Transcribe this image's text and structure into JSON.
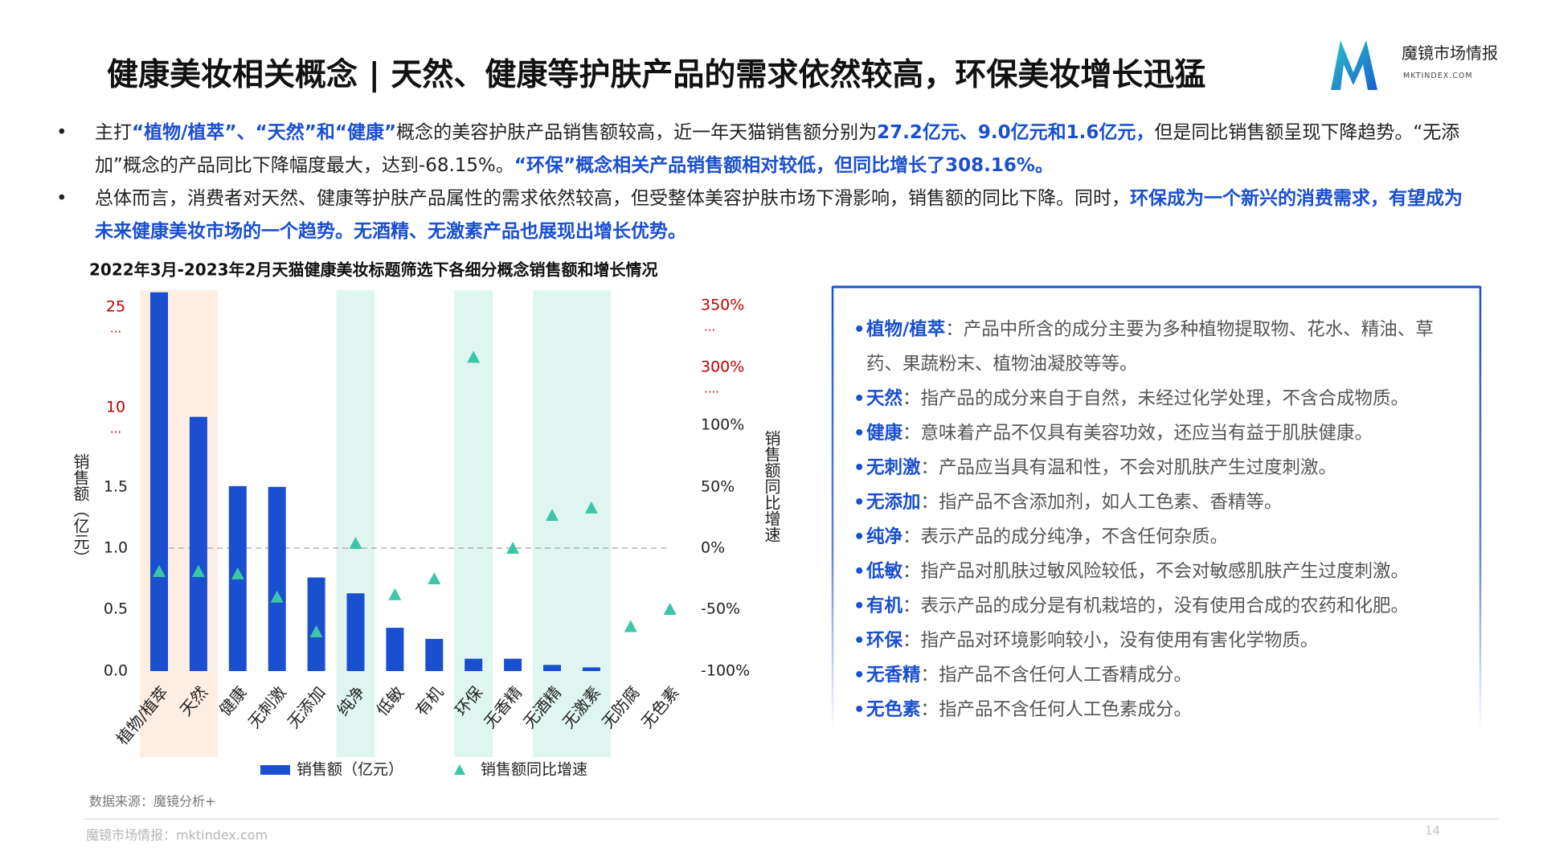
{
  "title": "健康美妆相关概念 | 天然、健康等护肤产品的需求依然较高，环保美妆增长迅猛",
  "brand": {
    "name": "魔镜市场情报",
    "site": "MKTINDEX.COM"
  },
  "bullets": [
    [
      {
        "text": "主打",
        "strong": false
      },
      {
        "text": "“植物/植萃”、“天然”和“健康”",
        "strong": true
      },
      {
        "text": "概念的美容护肤产品销售额较高，近一年天猫销售额分别为",
        "strong": false
      },
      {
        "text": "27.2亿元、9.0亿元和1.6亿元，",
        "strong": true
      },
      {
        "text": "但是同比销售额呈现下降趋势。“无添加”概念的产品同比下降幅度最大，达到-68.15%。",
        "strong": false
      },
      {
        "text": "“环保”概念相关产品销售额相对较低，但同比增长了308.16%。",
        "strong": true
      }
    ],
    [
      {
        "text": "总体而言，消费者对天然、健康等护肤产品属性的需求依然较高，但受整体美容护肤市场下滑影响，销售额的同比下降。同时，",
        "strong": false
      },
      {
        "text": "环保成为一个新兴的消费需求，有望成为未来健康美妆市场的一个趋势。无酒精、无激素产品也展现出增长优势。",
        "strong": true
      }
    ]
  ],
  "chart_data": {
    "type": "bar",
    "title": "2022年3月-2023年2月天猫健康美妆标题筛选下各细分概念销售额和增长情况",
    "categories": [
      "植物/植萃",
      "天然",
      "健康",
      "无刺激",
      "无添加",
      "纯净",
      "低敏",
      "有机",
      "环保",
      "无香精",
      "无酒精",
      "无激素",
      "无防腐",
      "无色素"
    ],
    "series": [
      {
        "name": "销售额（亿元）",
        "type": "bar",
        "color": "#1a4fcf",
        "values": [
          27.2,
          9.0,
          1.6,
          1.52,
          0.76,
          0.63,
          0.35,
          0.26,
          0.1,
          0.1,
          0.05,
          0.03,
          0,
          0
        ]
      },
      {
        "name": "销售额同比增速",
        "type": "scatter",
        "marker": "triangle",
        "axis": "y2",
        "color": "#3cc6a8",
        "values": [
          -19,
          -19,
          -21,
          -40,
          -68.15,
          4,
          -38,
          -25,
          308.16,
          0,
          27,
          33,
          -64,
          -50
        ]
      }
    ],
    "ylabel": "销售额（亿元）",
    "y2label": "销售额同比增速",
    "ylim": [
      0,
      25
    ],
    "yticks": [
      {
        "value": 0,
        "label": "0.0"
      },
      {
        "value": 0.5,
        "label": "0.5"
      },
      {
        "value": 1,
        "label": "1.0"
      },
      {
        "value": 1.5,
        "label": "1.5"
      },
      {
        "value": 10,
        "label": "10",
        "break": "...",
        "color": "#c00000"
      },
      {
        "value": 25,
        "label": "25",
        "break": "...",
        "color": "#c00000"
      }
    ],
    "y2lim": [
      -100,
      350
    ],
    "y2ticks": [
      {
        "value": -100,
        "label": "-100%"
      },
      {
        "value": -50,
        "label": "-50%"
      },
      {
        "value": 0,
        "label": "0%"
      },
      {
        "value": 50,
        "label": "50%"
      },
      {
        "value": 100,
        "label": "100%"
      },
      {
        "value": 300,
        "label": "300%",
        "break": "....",
        "color": "#c00000"
      },
      {
        "value": 350,
        "label": "350%",
        "break": "...",
        "color": "#c00000"
      }
    ],
    "reference_line": {
      "axis": "y2",
      "value": 0,
      "style": "dashed"
    },
    "highlight_bands": [
      {
        "categories": [
          0,
          1
        ],
        "color": "#fdeee3"
      },
      {
        "categories": [
          5
        ],
        "color": "#dff5f0"
      },
      {
        "categories": [
          8
        ],
        "color": "#dff5f0"
      },
      {
        "categories": [
          10,
          11
        ],
        "color": "#dff5f0"
      }
    ],
    "legend": "bottom",
    "source": "数据来源：魔镜分析+"
  },
  "definitions": [
    {
      "term": "植物/植萃",
      "text": "：产品中所含的成分主要为多种植物提取物、花水、精油、草药、果蔬粉末、植物油凝胶等等。"
    },
    {
      "term": "天然",
      "text": "：指产品的成分来自于自然，未经过化学处理，不含合成物质。"
    },
    {
      "term": "健康",
      "text": "：意味着产品不仅具有美容功效，还应当有益于肌肤健康。"
    },
    {
      "term": "无刺激",
      "text": "：产品应当具有温和性，不会对肌肤产生过度刺激。"
    },
    {
      "term": "无添加",
      "text": "：指产品不含添加剂，如人工色素、香精等。"
    },
    {
      "term": "纯净",
      "text": "：表示产品的成分纯净，不含任何杂质。"
    },
    {
      "term": "低敏",
      "text": "：指产品对肌肤过敏风险较低，不会对敏感肌肤产生过度刺激。"
    },
    {
      "term": "有机",
      "text": "：表示产品的成分是有机栽培的，没有使用合成的农药和化肥。"
    },
    {
      "term": "环保",
      "text": "：指产品对环境影响较小，没有使用有害化学物质。"
    },
    {
      "term": "无香精",
      "text": "：指产品不含任何人工香精成分。"
    },
    {
      "term": "无色素",
      "text": "：指产品不含任何人工色素成分。"
    }
  ],
  "footer": {
    "text": "魔镜市场情报：mktindex.com",
    "page": 14
  }
}
